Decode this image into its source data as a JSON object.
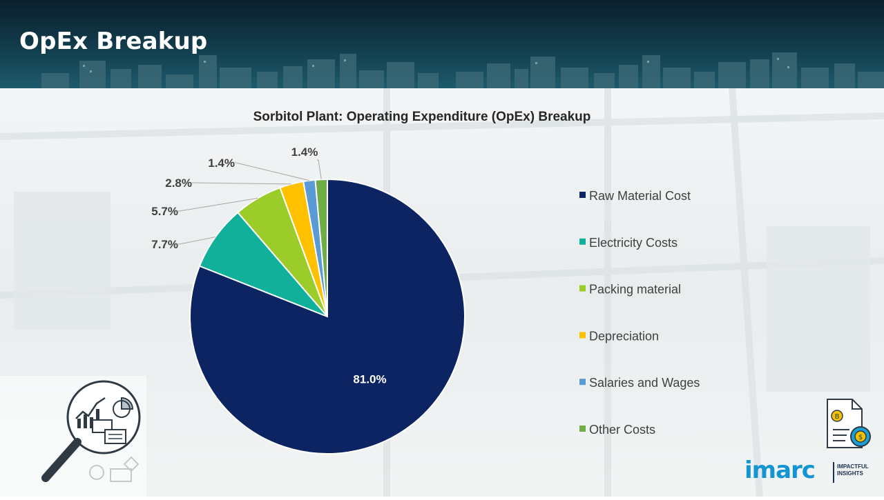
{
  "page": {
    "title": "OpEx Breakup"
  },
  "chart_data": {
    "type": "pie",
    "title": "Sorbitol Plant: Operating Expenditure (OpEx) Breakup",
    "slices": [
      {
        "label": "Raw Material Cost",
        "value": 81.0,
        "display": "81.0%",
        "color": "#0c2461"
      },
      {
        "label": "Electricity Costs",
        "value": 7.7,
        "display": "7.7%",
        "color": "#10b09a"
      },
      {
        "label": "Packing material",
        "value": 5.7,
        "display": "5.7%",
        "color": "#9ccc2a"
      },
      {
        "label": "Depreciation",
        "value": 2.8,
        "display": "2.8%",
        "color": "#ffc000"
      },
      {
        "label": "Salaries and Wages",
        "value": 1.4,
        "display": "1.4%",
        "color": "#5b9bd5"
      },
      {
        "label": "Other Costs",
        "value": 1.4,
        "display": "1.4%",
        "color": "#70ad47"
      }
    ],
    "legend_position": "right"
  },
  "icons": {
    "left": "analytics-magnifier-icon",
    "right": "financial-document-icon"
  },
  "logo": {
    "name": "imarc",
    "tagline_line1": "IMPACTFUL",
    "tagline_line2": "INSIGHTS",
    "brand_color": "#1495d3"
  }
}
